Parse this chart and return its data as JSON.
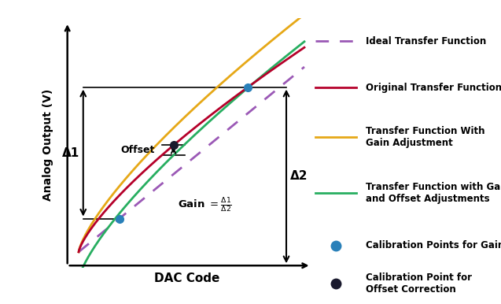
{
  "bg_color": "#ffffff",
  "figsize": [
    6.37,
    3.86
  ],
  "dpi": 100,
  "x_label": "DAC Code",
  "y_label": "Analog Output (V)",
  "ideal_color": "#9b59b6",
  "original_color": "#b5002a",
  "gain_adj_color": "#e6a817",
  "gain_offset_color": "#27ae60",
  "cal_point_color": "#2980b9",
  "offset_point_color": "#1a1a2e",
  "delta1_label": "Δ1",
  "delta2_label": "Δ2",
  "offset_label": "Offset",
  "legend_labels": [
    "Ideal Transfer Function",
    "Original Transfer Function",
    "Transfer Function With\nGain Adjustment",
    "Transfer Function with Gain and\nand Offset Adjustments",
    "Calibration Points for Gain Correction",
    "Calibration Point for\nOffset Correction"
  ]
}
